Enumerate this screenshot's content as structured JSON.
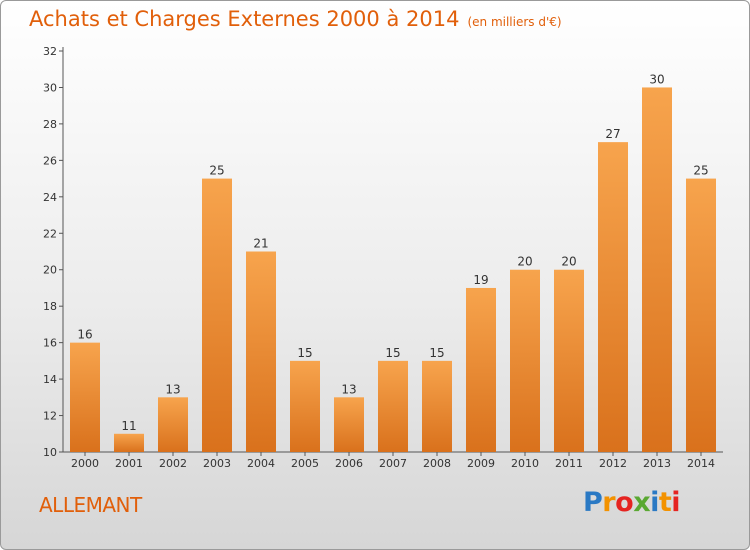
{
  "title": "Achats et Charges Externes 2000 à 2014",
  "subtitle": "(en milliers d'€)",
  "commune": "ALLEMANT",
  "logo": {
    "letters": [
      "P",
      "r",
      "o",
      "x",
      "i",
      "t",
      "i"
    ],
    "colors": [
      "#2a79c4",
      "#f39200",
      "#e52421",
      "#5aa832",
      "#2a79c4",
      "#f39200",
      "#e52421"
    ]
  },
  "colors": {
    "bar_top": "#f7a44d",
    "bar_bottom": "#d9711c",
    "title": "#e15f0a"
  },
  "chart_data": {
    "type": "bar",
    "categories": [
      "2000",
      "2001",
      "2002",
      "2003",
      "2004",
      "2005",
      "2006",
      "2007",
      "2008",
      "2009",
      "2010",
      "2011",
      "2012",
      "2013",
      "2014"
    ],
    "values": [
      16,
      11,
      13,
      25,
      21,
      15,
      13,
      15,
      15,
      19,
      20,
      20,
      27,
      30,
      25
    ],
    "ylim": [
      10,
      32
    ],
    "yticks": [
      10,
      12,
      14,
      16,
      18,
      20,
      22,
      24,
      26,
      28,
      30,
      32
    ],
    "grid": false,
    "data_labels": true
  }
}
